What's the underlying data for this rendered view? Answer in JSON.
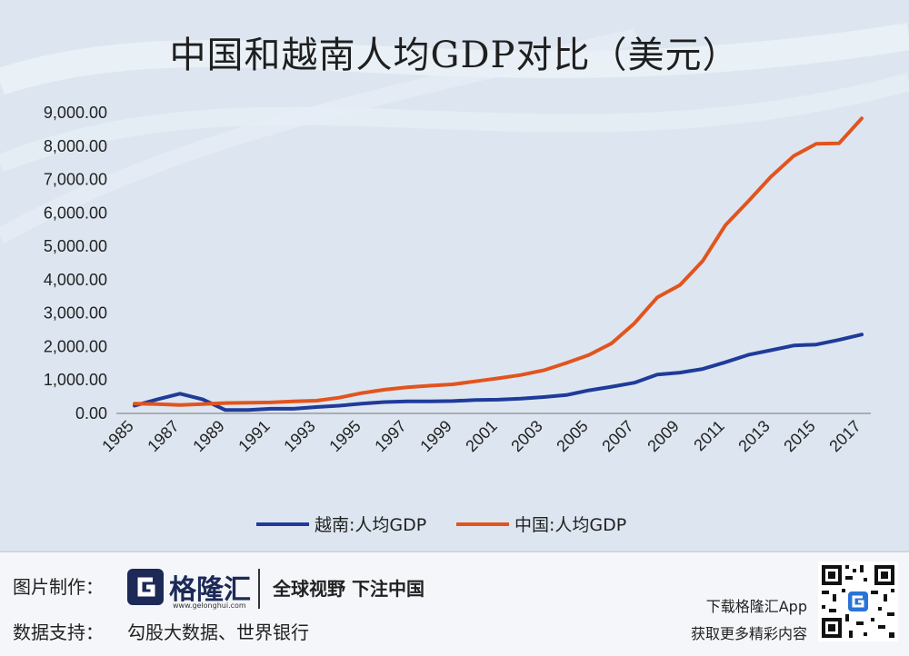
{
  "title": "中国和越南人均GDP对比（美元）",
  "chart_data": {
    "type": "line",
    "title": "中国和越南人均GDP对比（美元）",
    "x": [
      1985,
      1986,
      1987,
      1988,
      1989,
      1990,
      1991,
      1992,
      1993,
      1994,
      1995,
      1996,
      1997,
      1998,
      1999,
      2000,
      2001,
      2002,
      2003,
      2004,
      2005,
      2006,
      2007,
      2008,
      2009,
      2010,
      2011,
      2012,
      2013,
      2014,
      2015,
      2016,
      2017
    ],
    "x_tick_labels": [
      "1985",
      "1987",
      "1989",
      "1991",
      "1993",
      "1995",
      "1997",
      "1999",
      "2001",
      "2003",
      "2005",
      "2007",
      "2009",
      "2011",
      "2013",
      "2015",
      "2017"
    ],
    "y_tick_labels": [
      "0.00",
      "1,000.00",
      "2,000.00",
      "3,000.00",
      "4,000.00",
      "5,000.00",
      "6,000.00",
      "7,000.00",
      "8,000.00",
      "9,000.00"
    ],
    "ylim": [
      0,
      9000
    ],
    "grid": false,
    "legend_position": "bottom",
    "series": [
      {
        "name": "越南:人均GDP",
        "color": "#1f3b9a",
        "values": [
          230,
          420,
          590,
          420,
          100,
          100,
          140,
          140,
          190,
          230,
          290,
          340,
          360,
          360,
          370,
          400,
          410,
          440,
          490,
          550,
          690,
          800,
          920,
          1160,
          1220,
          1330,
          1530,
          1750,
          1890,
          2030,
          2060,
          2200,
          2360
        ]
      },
      {
        "name": "中国:人均GDP",
        "color": "#e2541e",
        "values": [
          290,
          280,
          250,
          280,
          310,
          320,
          330,
          360,
          380,
          470,
          610,
          710,
          780,
          830,
          870,
          960,
          1050,
          1150,
          1290,
          1510,
          1750,
          2100,
          2700,
          3470,
          3840,
          4560,
          5630,
          6340,
          7080,
          7700,
          8070,
          8080,
          8830
        ]
      }
    ]
  },
  "footer": {
    "made_by_label": "图片制作：",
    "logo_text": "格隆汇",
    "logo_url": "www.gelonghui.com",
    "slogan": "全球视野 下注中国",
    "data_support_label": "数据支持：",
    "data_support_value": "勾股大数据、世界银行",
    "app_line1": "下载格隆汇App",
    "app_line2": "获取更多精彩内容"
  }
}
